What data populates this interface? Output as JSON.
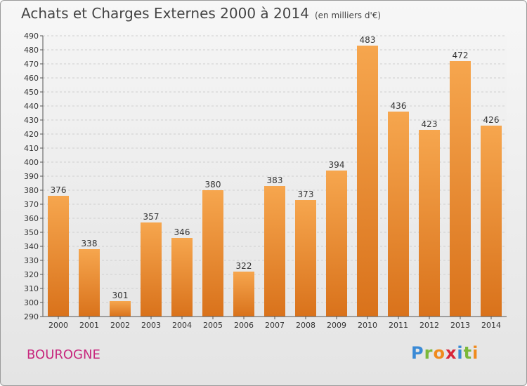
{
  "header": {
    "title": "Achats et Charges Externes 2000 à 2014",
    "subtitle": "(en milliers d'€)"
  },
  "commune": "BOUROGNE",
  "logo": {
    "text": "Proxiti",
    "letters": [
      {
        "ch": "P",
        "color": "#3a8ad6"
      },
      {
        "ch": "r",
        "color": "#7bb83a"
      },
      {
        "ch": "o",
        "color": "#f08a1c"
      },
      {
        "ch": "x",
        "color": "#d8263a"
      },
      {
        "ch": "i",
        "color": "#3a8ad6"
      },
      {
        "ch": "t",
        "color": "#7bb83a"
      },
      {
        "ch": "i",
        "color": "#f08a1c"
      }
    ]
  },
  "colors": {
    "bar_light": "#f6a64e",
    "bar_dark": "#d9721b",
    "grid": "#cfcfcf",
    "axis": "#555555"
  },
  "chart_data": {
    "type": "bar",
    "categories": [
      "2000",
      "2001",
      "2002",
      "2003",
      "2004",
      "2005",
      "2006",
      "2007",
      "2008",
      "2009",
      "2010",
      "2011",
      "2012",
      "2013",
      "2014"
    ],
    "values": [
      376,
      338,
      301,
      357,
      346,
      380,
      322,
      383,
      373,
      394,
      483,
      436,
      423,
      472,
      426
    ],
    "ylim": [
      290,
      490
    ],
    "yticks": [
      290,
      300,
      310,
      320,
      330,
      340,
      350,
      360,
      370,
      380,
      390,
      400,
      410,
      420,
      430,
      440,
      450,
      460,
      470,
      480,
      490
    ],
    "grid": true
  }
}
